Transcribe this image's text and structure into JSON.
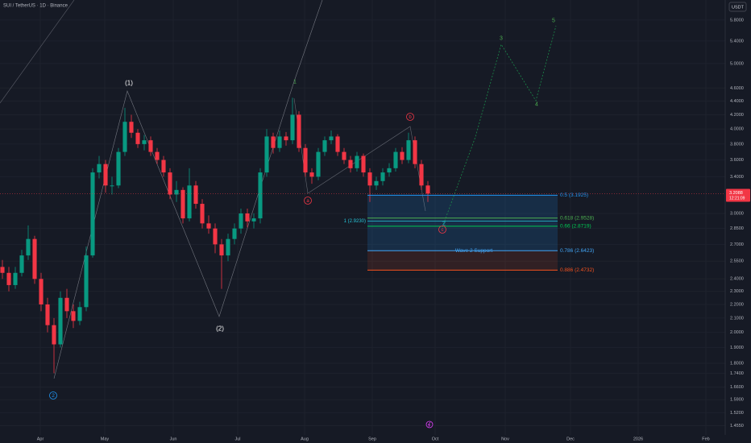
{
  "title": "SUI / TetherUS · 1D · Binance",
  "currency_button": "USDT",
  "chart_data": {
    "type": "candlestick",
    "ohlc": [
      [
        2.5,
        2.56,
        2.4,
        2.45
      ],
      [
        2.45,
        2.5,
        2.3,
        2.35
      ],
      [
        2.35,
        2.5,
        2.32,
        2.45
      ],
      [
        2.45,
        2.65,
        2.42,
        2.6
      ],
      [
        2.6,
        2.88,
        2.56,
        2.75
      ],
      [
        2.75,
        2.78,
        2.36,
        2.4
      ],
      [
        2.4,
        2.45,
        2.15,
        2.2
      ],
      [
        2.2,
        2.25,
        2.0,
        2.05
      ],
      [
        2.05,
        2.1,
        1.74,
        1.92
      ],
      [
        1.92,
        2.3,
        1.9,
        2.25
      ],
      [
        2.25,
        2.32,
        2.1,
        2.15
      ],
      [
        2.15,
        2.2,
        2.03,
        2.08
      ],
      [
        2.08,
        2.22,
        2.05,
        2.18
      ],
      [
        2.18,
        2.68,
        2.15,
        2.6
      ],
      [
        2.6,
        3.5,
        2.58,
        3.45
      ],
      [
        3.45,
        3.65,
        3.38,
        3.55
      ],
      [
        3.55,
        3.6,
        3.22,
        3.3
      ],
      [
        3.3,
        3.4,
        3.2,
        3.3
      ],
      [
        3.3,
        3.75,
        3.27,
        3.7
      ],
      [
        3.7,
        4.3,
        3.65,
        4.1
      ],
      [
        4.1,
        4.2,
        3.88,
        3.95
      ],
      [
        3.95,
        4.0,
        3.75,
        3.8
      ],
      [
        3.8,
        3.92,
        3.72,
        3.85
      ],
      [
        3.85,
        3.9,
        3.65,
        3.7
      ],
      [
        3.7,
        3.75,
        3.55,
        3.6
      ],
      [
        3.6,
        3.65,
        3.4,
        3.45
      ],
      [
        3.45,
        3.5,
        3.15,
        3.2
      ],
      [
        3.2,
        3.35,
        3.12,
        3.25
      ],
      [
        3.25,
        3.28,
        2.9,
        2.95
      ],
      [
        2.95,
        3.5,
        2.92,
        3.3
      ],
      [
        3.3,
        3.35,
        3.05,
        3.1
      ],
      [
        3.1,
        3.15,
        2.85,
        2.9
      ],
      [
        2.9,
        2.98,
        2.8,
        2.85
      ],
      [
        2.85,
        2.9,
        2.62,
        2.7
      ],
      [
        2.7,
        2.75,
        2.32,
        2.6
      ],
      [
        2.6,
        2.8,
        2.55,
        2.75
      ],
      [
        2.75,
        2.9,
        2.7,
        2.85
      ],
      [
        2.85,
        3.05,
        2.8,
        3.0
      ],
      [
        3.0,
        3.05,
        2.86,
        2.92
      ],
      [
        2.92,
        3.0,
        2.85,
        2.95
      ],
      [
        2.95,
        3.5,
        2.9,
        3.45
      ],
      [
        3.45,
        4.0,
        3.4,
        3.9
      ],
      [
        3.9,
        3.95,
        3.68,
        3.75
      ],
      [
        3.75,
        3.98,
        3.7,
        3.9
      ],
      [
        3.9,
        3.96,
        3.78,
        3.85
      ],
      [
        3.85,
        4.45,
        3.8,
        4.2
      ],
      [
        4.2,
        4.25,
        3.7,
        3.75
      ],
      [
        3.75,
        3.8,
        3.4,
        3.45
      ],
      [
        3.45,
        3.5,
        3.32,
        3.4
      ],
      [
        3.4,
        3.75,
        3.36,
        3.7
      ],
      [
        3.7,
        3.9,
        3.65,
        3.85
      ],
      [
        3.85,
        3.98,
        3.8,
        3.9
      ],
      [
        3.9,
        3.93,
        3.65,
        3.7
      ],
      [
        3.7,
        3.75,
        3.55,
        3.6
      ],
      [
        3.6,
        3.65,
        3.45,
        3.5
      ],
      [
        3.5,
        3.7,
        3.46,
        3.65
      ],
      [
        3.65,
        3.68,
        3.4,
        3.45
      ],
      [
        3.45,
        3.5,
        3.12,
        3.3
      ],
      [
        3.3,
        3.4,
        3.25,
        3.35
      ],
      [
        3.35,
        3.5,
        3.3,
        3.45
      ],
      [
        3.45,
        3.56,
        3.4,
        3.5
      ],
      [
        3.5,
        3.75,
        3.46,
        3.7
      ],
      [
        3.7,
        3.76,
        3.55,
        3.6
      ],
      [
        3.6,
        3.95,
        3.56,
        3.85
      ],
      [
        3.85,
        3.9,
        3.5,
        3.55
      ],
      [
        3.55,
        3.6,
        3.25,
        3.3
      ],
      [
        3.3,
        3.35,
        3.12,
        3.21
      ]
    ],
    "up_color": "#089981",
    "down_color": "#f23645",
    "xlim": [
      -0.375,
      112.125
    ],
    "xticks": [
      {
        "value": 5.875,
        "label": "Apr"
      },
      {
        "value": 15.875,
        "label": "May"
      },
      {
        "value": 26.5,
        "label": "Jun"
      },
      {
        "value": 36.5,
        "label": "Jul"
      },
      {
        "value": 46.875,
        "label": "Aug"
      },
      {
        "value": 57.375,
        "label": "Sep"
      },
      {
        "value": 67.125,
        "label": "Oct"
      },
      {
        "value": 78,
        "label": "Nov"
      },
      {
        "value": 88.125,
        "label": "Dec"
      },
      {
        "value": 98.625,
        "label": "2026"
      },
      {
        "value": 109.125,
        "label": "Feb"
      }
    ],
    "ylim": [
      1.41,
      6.21
    ],
    "log_scale": true,
    "grid": true,
    "yticks": [
      {
        "value": 5.8,
        "label": "5.8000"
      },
      {
        "value": 5.4,
        "label": "5.4000"
      },
      {
        "value": 5,
        "label": "5.0000"
      },
      {
        "value": 4.6,
        "label": "4.6000"
      },
      {
        "value": 4.4,
        "label": "4.4000"
      },
      {
        "value": 4.2,
        "label": "4.2000"
      },
      {
        "value": 4,
        "label": "4.0000"
      },
      {
        "value": 3.8,
        "label": "3.8000"
      },
      {
        "value": 3.6,
        "label": "3.6000"
      },
      {
        "value": 3.4,
        "label": "3.4000"
      },
      {
        "value": 3,
        "label": "3.0000"
      },
      {
        "value": 2.85,
        "label": "2.8500"
      },
      {
        "value": 2.7,
        "label": "2.7000"
      },
      {
        "value": 2.55,
        "label": "2.5500"
      },
      {
        "value": 2.4,
        "label": "2.4000"
      },
      {
        "value": 2.3,
        "label": "2.3000"
      },
      {
        "value": 2.2,
        "label": "2.2000"
      },
      {
        "value": 2.1,
        "label": "2.1000"
      },
      {
        "value": 2,
        "label": "2.0000"
      },
      {
        "value": 1.9,
        "label": "1.9000"
      },
      {
        "value": 1.8,
        "label": "1.8000"
      },
      {
        "value": 1.74,
        "label": "1.7400"
      },
      {
        "value": 1.66,
        "label": "1.6600"
      },
      {
        "value": 1.59,
        "label": "1.5900"
      },
      {
        "value": 1.52,
        "label": "1.5200"
      },
      {
        "value": 1.455,
        "label": "1.4550"
      }
    ],
    "last_price": {
      "value": 3.2088,
      "label": "3.2088"
    },
    "countdown": "12:21:09",
    "fib_levels": [
      {
        "value": 3.1925,
        "label": "0.5 (3.1925)",
        "color": "#2196f3"
      },
      {
        "value": 2.9528,
        "label": "0.618 (2.9528)",
        "color": "#4caf50"
      },
      {
        "value": 2.923,
        "label": "1 (2.9230)",
        "color": "#26c6da"
      },
      {
        "value": 2.8719,
        "label": "0.66 (2.8719)",
        "color": "#00c853"
      },
      {
        "value": 2.6423,
        "label": "0.786 (2.6423)",
        "color": "#42a5f5"
      },
      {
        "value": 2.4732,
        "label": "0.886 (2.4732)",
        "color": "#f4511e"
      }
    ],
    "annotations": [
      "(1)",
      "(2)",
      "1",
      "2",
      "3",
      "4",
      "5",
      "a",
      "b",
      "c",
      "2",
      "Wave 2 Support"
    ]
  }
}
